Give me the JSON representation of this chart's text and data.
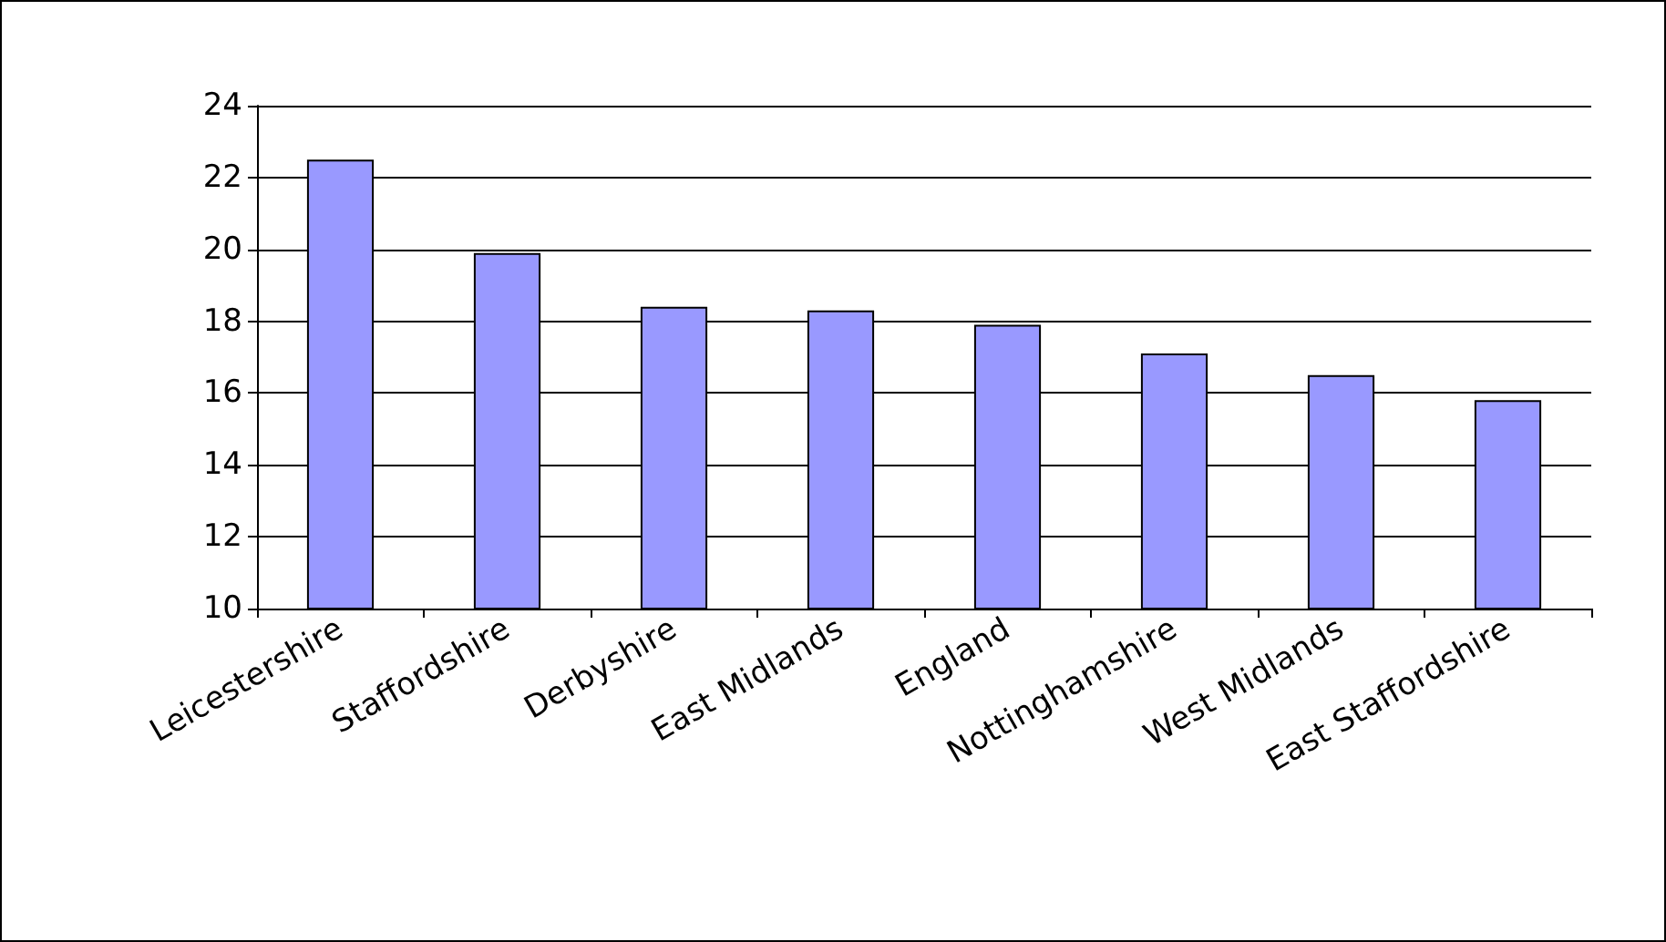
{
  "chart_data": {
    "type": "bar",
    "categories": [
      "Leicestershire",
      "Staffordshire",
      "Derbyshire",
      "East Midlands",
      "England",
      "Nottinghamshire",
      "West Midlands",
      "East Staffordshire"
    ],
    "values": [
      22.5,
      19.9,
      18.4,
      18.3,
      17.9,
      17.1,
      16.5,
      15.8
    ],
    "color": "#9999ff",
    "ylim": [
      10,
      24
    ],
    "yticks": [
      10,
      12,
      14,
      16,
      18,
      20,
      22,
      24
    ],
    "grid": "y"
  }
}
